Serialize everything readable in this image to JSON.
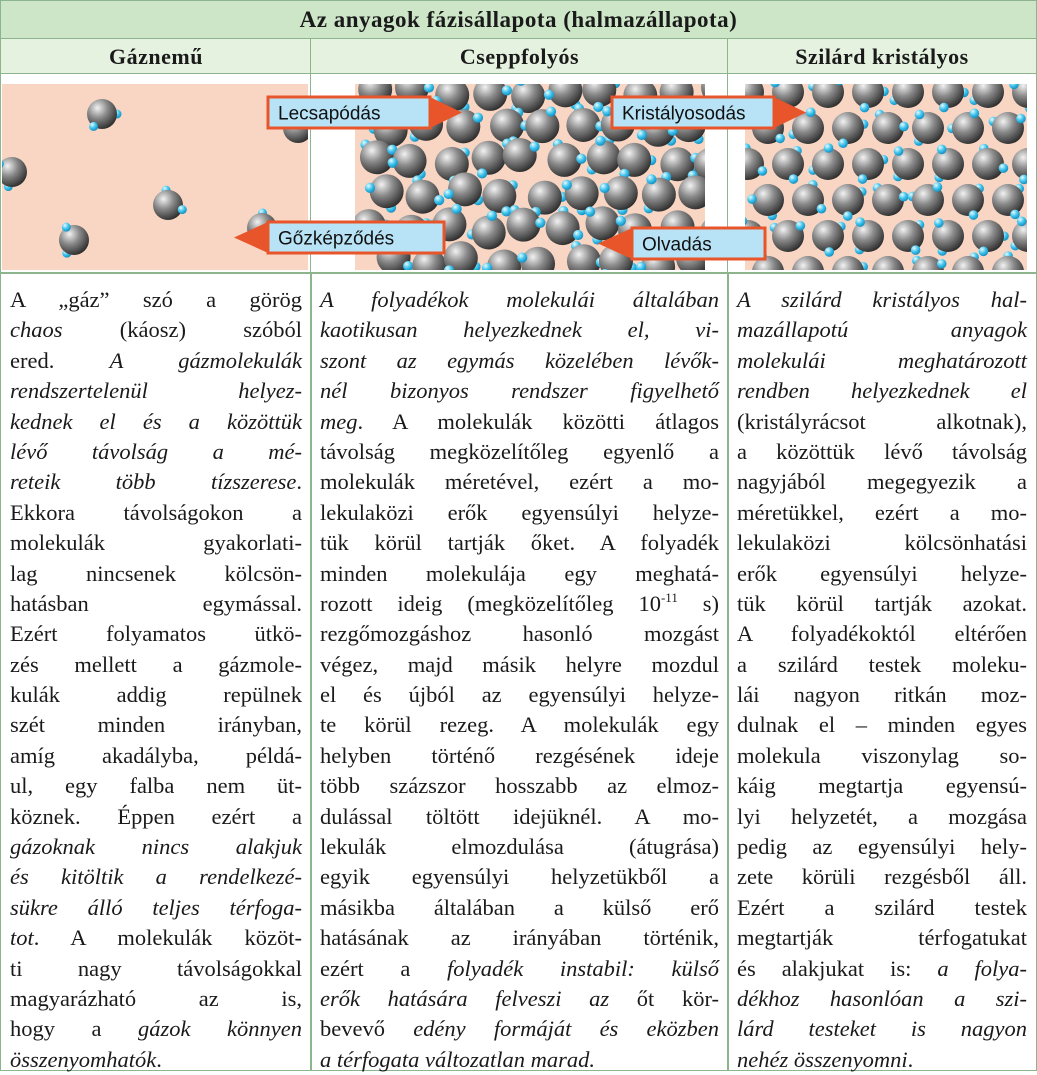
{
  "table": {
    "title": "Az anyagok fázisállapota (halmazállapota)",
    "columns": [
      {
        "heading": "Gáznemű",
        "lines": [
          [
            "A „gáz” szó a görög"
          ],
          [
            {
              "italic": "chaos"
            },
            " (káosz) szóból"
          ],
          [
            "ered. ",
            {
              "italic": "A gázmolekulák"
            }
          ],
          [
            {
              "italic": "rendszertelenül helyez-"
            }
          ],
          [
            {
              "italic": "kednek el és a közöttük"
            }
          ],
          [
            {
              "italic": "lévő távolság a mé-"
            }
          ],
          [
            {
              "italic": "reteik több tízszerese"
            },
            "."
          ],
          [
            "Ekkora távolságokon a"
          ],
          [
            "molekulák gyakorlati-"
          ],
          [
            "lag nincsenek kölcsön-"
          ],
          [
            "hatásban egymással."
          ],
          [
            "Ezért folyamatos ütkö-"
          ],
          [
            "zés mellett a gázmole-"
          ],
          [
            "kulák addig repülnek"
          ],
          [
            "szét minden irányban,"
          ],
          [
            "amíg akadályba, példá-"
          ],
          [
            "ul, egy falba nem üt-"
          ],
          [
            "köznek. Éppen ezért a"
          ],
          [
            {
              "italic": "gázoknak nincs alakjuk"
            }
          ],
          [
            {
              "italic": "és kitöltik a rendelkezé-"
            }
          ],
          [
            {
              "italic": "sükre álló teljes térfoga-"
            }
          ],
          [
            {
              "italic": "tot"
            },
            ". A molekulák közöt-"
          ],
          [
            "ti nagy távolságokkal"
          ],
          [
            "magyarázható az is,"
          ],
          [
            "hogy a ",
            {
              "italic": "gázok könnyen"
            }
          ],
          [
            {
              "italic": "összenyomhatók"
            },
            "."
          ]
        ]
      },
      {
        "heading": "Cseppfolyós",
        "lines": [
          [
            {
              "italic": "A folyadékok molekulái általában"
            }
          ],
          [
            {
              "italic": "kaotikusan helyezkednek el, vi-"
            }
          ],
          [
            {
              "italic": "szont az egymás közelében lévők-"
            }
          ],
          [
            {
              "italic": "nél bizonyos rendszer figyelhető"
            }
          ],
          [
            {
              "italic": "meg"
            },
            ". A molekulák közötti átlagos"
          ],
          [
            "távolság megközelítőleg egyenlő a"
          ],
          [
            "molekulák méretével, ezért a mo-"
          ],
          [
            "lekulaközi erők egyensúlyi helyze-"
          ],
          [
            "tük körül tartják őket. A folyadék"
          ],
          [
            "minden molekulája egy meghatá-"
          ],
          [
            "rozott ideig (megközelítőleg 10",
            {
              "sup": "-11"
            },
            " s)"
          ],
          [
            "rezgőmozgáshoz hasonló mozgást"
          ],
          [
            "végez, majd másik helyre mozdul"
          ],
          [
            "el és újból az egyensúlyi helyze-"
          ],
          [
            "te körül rezeg. A molekulák egy"
          ],
          [
            "helyben történő rezgésének ideje"
          ],
          [
            "több százszor hosszabb az elmoz-"
          ],
          [
            "dulással töltött idejüknél. A mo-"
          ],
          [
            "lekulák elmozdulása (átugrása)"
          ],
          [
            "egyik egyensúlyi helyzetükből a"
          ],
          [
            "másikba általában a külső erő"
          ],
          [
            "hatásának az irányában történik,"
          ],
          [
            "ezért a ",
            {
              "italic": "folyadék instabil: külső"
            }
          ],
          [
            {
              "italic": "erők hatására felveszi az"
            },
            " őt kör-"
          ],
          [
            "bevevő ",
            {
              "italic": "edény formáját és eközben"
            }
          ],
          [
            {
              "italic": "a térfogata változatlan marad."
            }
          ]
        ]
      },
      {
        "heading": "Szilárd kristályos",
        "lines": [
          [
            {
              "italic": "A szilárd kristályos hal-"
            }
          ],
          [
            {
              "italic": "mazállapotú anyagok"
            }
          ],
          [
            {
              "italic": "molekulái meghatározott"
            }
          ],
          [
            {
              "italic": "rendben helyezkednek el"
            }
          ],
          [
            "(kristályrácsot alkotnak),"
          ],
          [
            "a közöttük lévő távolság"
          ],
          [
            "nagyjából megegyezik a"
          ],
          [
            "méretükkel, ezért a mo-"
          ],
          [
            "lekulaközi kölcsönhatási"
          ],
          [
            "erők egyensúlyi helyze-"
          ],
          [
            "tük körül tartják azokat."
          ],
          [
            "A folyadékoktól eltérően"
          ],
          [
            "a szilárd testek moleku-"
          ],
          [
            "lái nagyon ritkán moz-"
          ],
          [
            "dulnak el – minden egyes"
          ],
          [
            "molekula viszonylag so-"
          ],
          [
            "káig megtartja egyensú-"
          ],
          [
            "lyi helyzetét, a mozgása"
          ],
          [
            "pedig az egyensúlyi hely-"
          ],
          [
            "zete körüli rezgésből áll."
          ],
          [
            "Ezért a szilárd testek"
          ],
          [
            "megtartják térfogatukat"
          ],
          [
            "és alakjukat is: ",
            {
              "italic": "a folya-"
            }
          ],
          [
            {
              "italic": "dékhoz hasonlóan a szi-"
            }
          ],
          [
            {
              "italic": "lárd testeket is nagyon"
            }
          ],
          [
            {
              "italic": "nehéz összenyomni"
            },
            "."
          ]
        ]
      }
    ]
  },
  "diagram": {
    "arrows": [
      "Lecsapódás",
      "Kristályosodás",
      "Gőzképződés",
      "Olvadás"
    ]
  }
}
